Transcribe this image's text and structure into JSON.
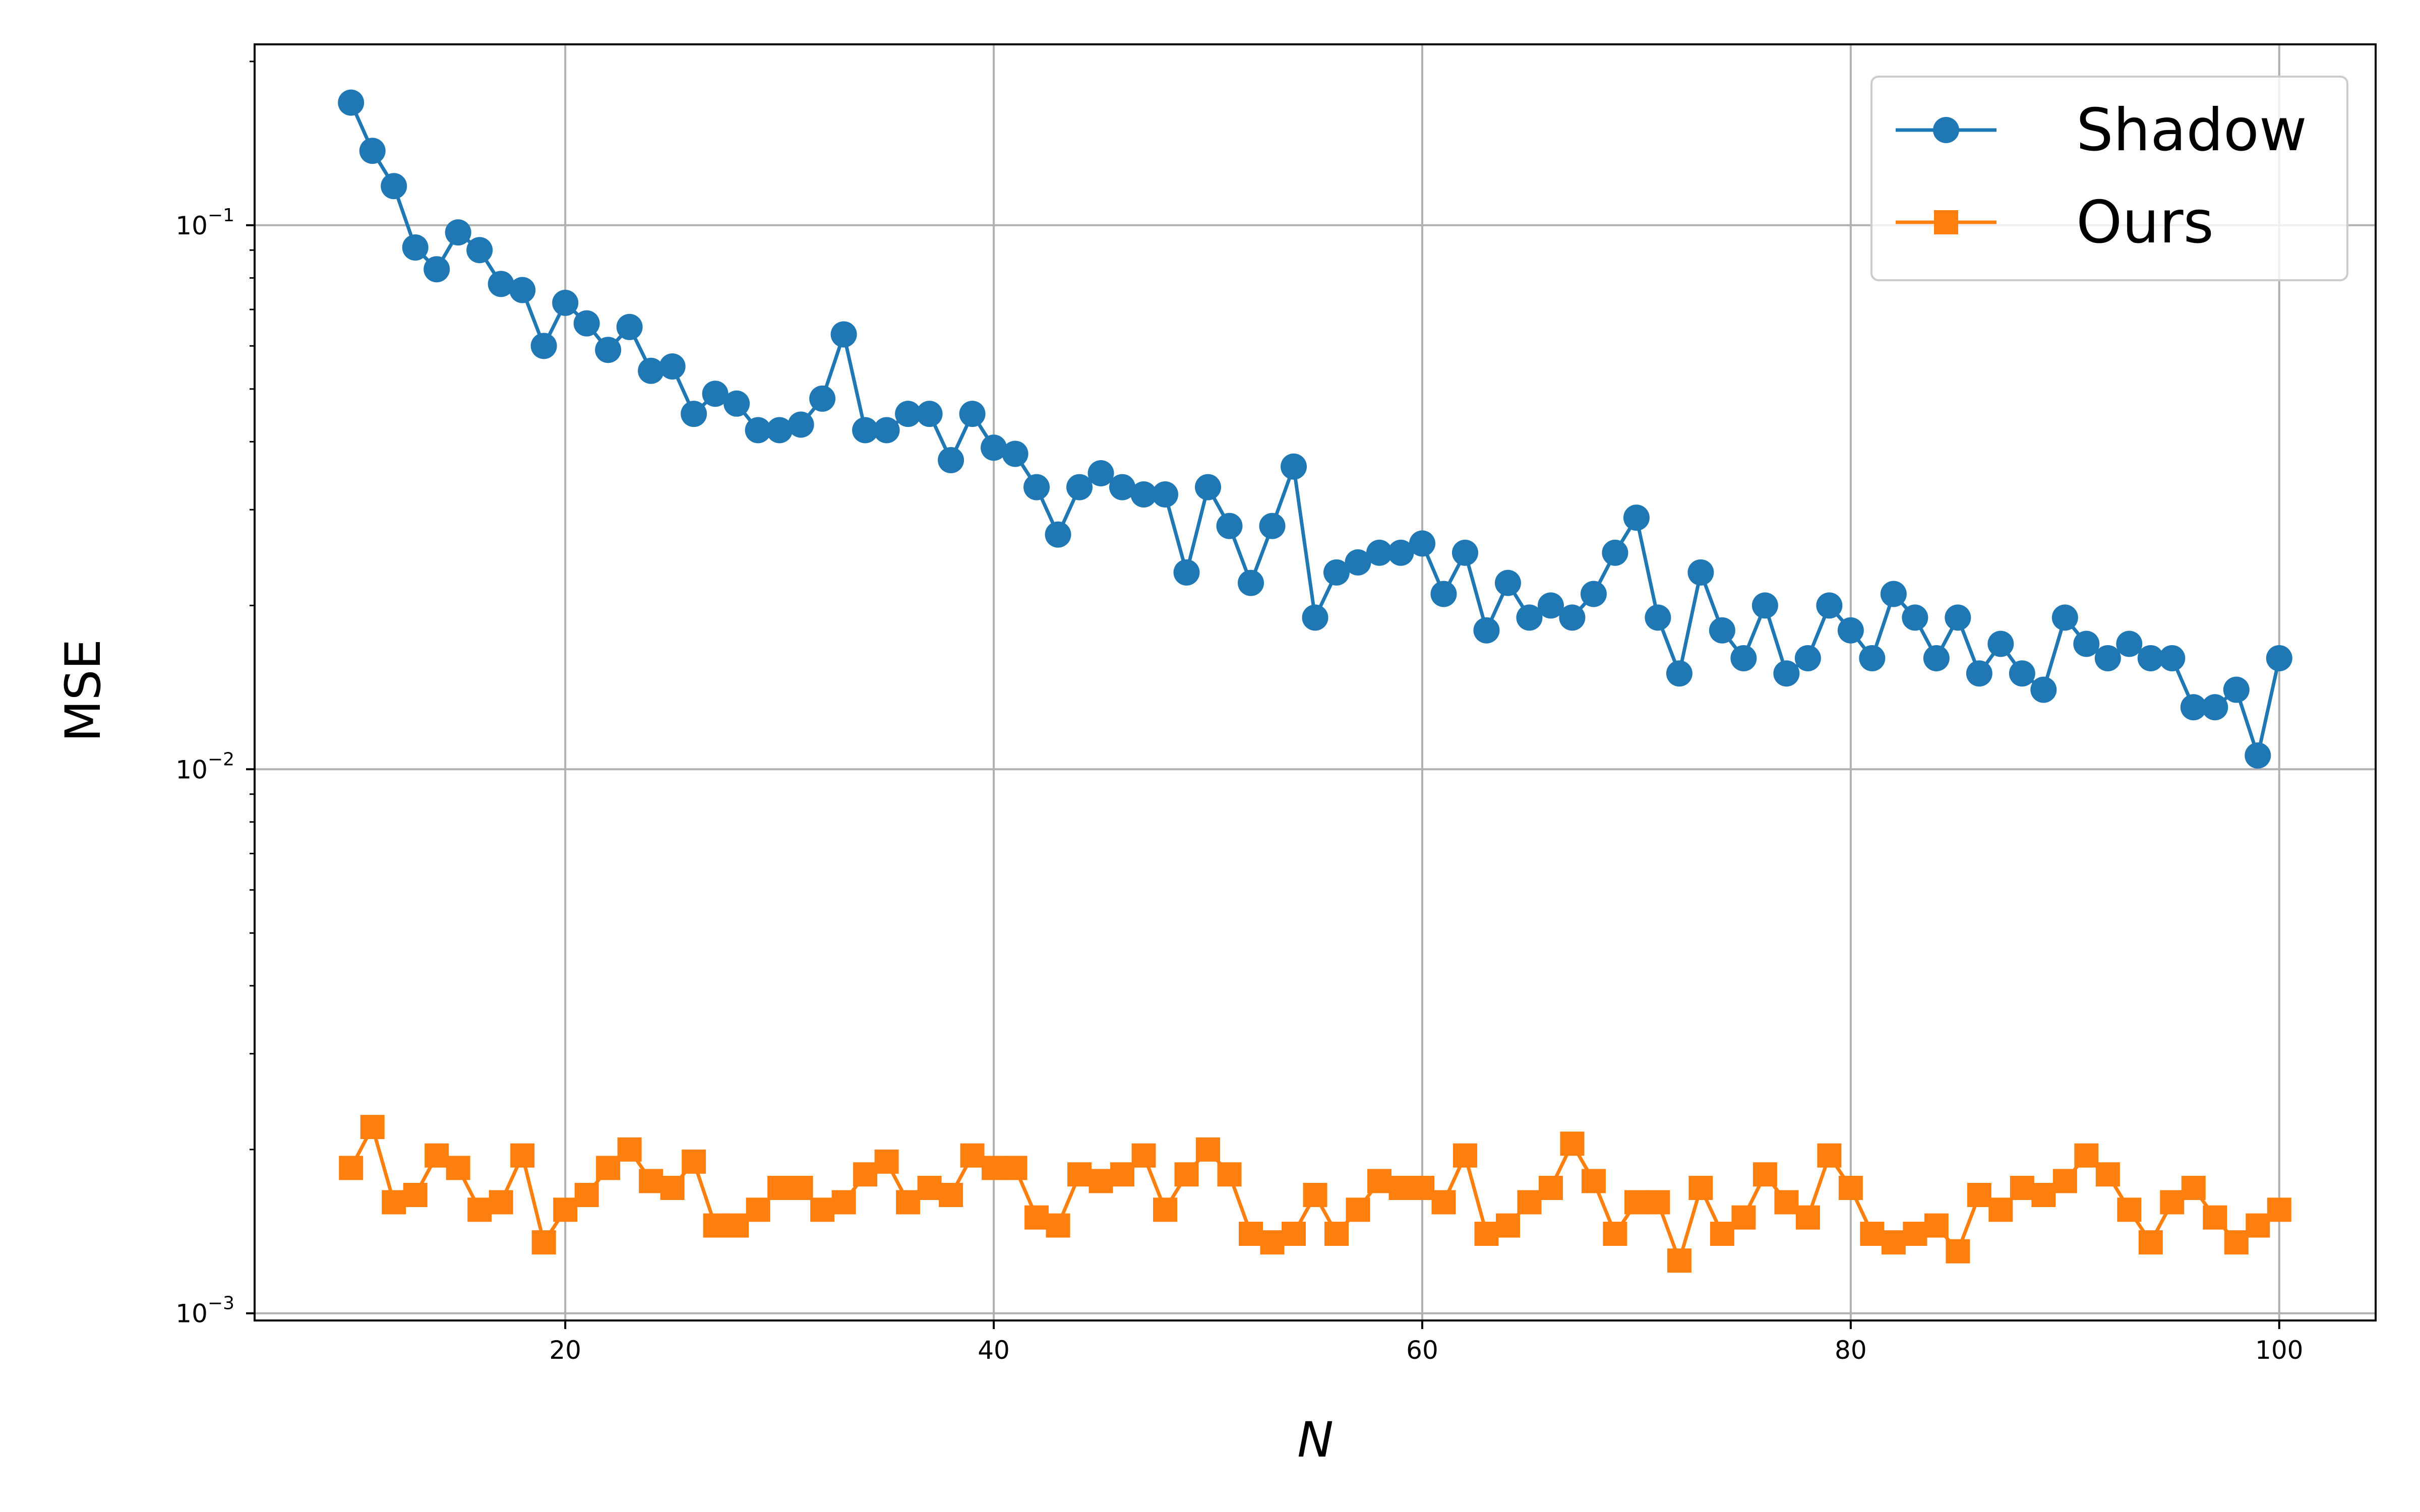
{
  "chart_data": {
    "type": "line",
    "title": "",
    "xlabel": "N",
    "ylabel": "MSE",
    "xlim": [
      5.5,
      104.5
    ],
    "ylim": [
      0.00097,
      0.215
    ],
    "yscale": "log",
    "grid": true,
    "legend_position": "top-right",
    "x_ticks": [
      20,
      40,
      60,
      80,
      100
    ],
    "x_tick_labels": [
      "20",
      "40",
      "60",
      "80",
      "100"
    ],
    "y_ticks": [
      0.001,
      0.01,
      0.1
    ],
    "y_tick_labels": [
      {
        "base": "10",
        "exp": "−3"
      },
      {
        "base": "10",
        "exp": "−2"
      },
      {
        "base": "10",
        "exp": "−1"
      }
    ],
    "x": [
      10,
      11,
      12,
      13,
      14,
      15,
      16,
      17,
      18,
      19,
      20,
      21,
      22,
      23,
      24,
      25,
      26,
      27,
      28,
      29,
      30,
      31,
      32,
      33,
      34,
      35,
      36,
      37,
      38,
      39,
      40,
      41,
      42,
      43,
      44,
      45,
      46,
      47,
      48,
      49,
      50,
      51,
      52,
      53,
      54,
      55,
      56,
      57,
      58,
      59,
      60,
      61,
      62,
      63,
      64,
      65,
      66,
      67,
      68,
      69,
      70,
      71,
      72,
      73,
      74,
      75,
      76,
      77,
      78,
      79,
      80,
      81,
      82,
      83,
      84,
      85,
      86,
      87,
      88,
      89,
      90,
      91,
      92,
      93,
      94,
      95,
      96,
      97,
      98,
      99,
      100
    ],
    "series": [
      {
        "name": "Shadow",
        "color": "#1f77b4",
        "marker": "circle",
        "values": [
          0.168,
          0.137,
          0.118,
          0.091,
          0.083,
          0.097,
          0.09,
          0.078,
          0.076,
          0.06,
          0.072,
          0.066,
          0.059,
          0.065,
          0.054,
          0.055,
          0.045,
          0.049,
          0.047,
          0.042,
          0.042,
          0.043,
          0.048,
          0.063,
          0.042,
          0.042,
          0.045,
          0.045,
          0.037,
          0.045,
          0.039,
          0.038,
          0.033,
          0.027,
          0.033,
          0.035,
          0.033,
          0.032,
          0.032,
          0.023,
          0.033,
          0.028,
          0.022,
          0.028,
          0.036,
          0.019,
          0.023,
          0.024,
          0.025,
          0.025,
          0.026,
          0.021,
          0.025,
          0.018,
          0.022,
          0.019,
          0.02,
          0.019,
          0.021,
          0.025,
          0.029,
          0.019,
          0.015,
          0.023,
          0.018,
          0.016,
          0.02,
          0.015,
          0.016,
          0.02,
          0.018,
          0.016,
          0.021,
          0.019,
          0.016,
          0.019,
          0.015,
          0.017,
          0.015,
          0.014,
          0.019,
          0.017,
          0.016,
          0.017,
          0.016,
          0.016,
          0.013,
          0.013,
          0.014,
          0.0106,
          0.016
        ]
      },
      {
        "name": "Ours",
        "color": "#ff7f0e",
        "marker": "square",
        "values": [
          0.00185,
          0.0022,
          0.0016,
          0.00165,
          0.00195,
          0.00185,
          0.00155,
          0.0016,
          0.00195,
          0.00135,
          0.00155,
          0.00165,
          0.00185,
          0.002,
          0.00175,
          0.0017,
          0.0019,
          0.00145,
          0.00145,
          0.00155,
          0.0017,
          0.0017,
          0.00155,
          0.0016,
          0.0018,
          0.0019,
          0.0016,
          0.0017,
          0.00165,
          0.00195,
          0.00185,
          0.00185,
          0.0015,
          0.00145,
          0.0018,
          0.00175,
          0.0018,
          0.00195,
          0.00155,
          0.0018,
          0.002,
          0.0018,
          0.0014,
          0.00135,
          0.0014,
          0.00165,
          0.0014,
          0.00155,
          0.00175,
          0.0017,
          0.0017,
          0.0016,
          0.00195,
          0.0014,
          0.00145,
          0.0016,
          0.0017,
          0.00205,
          0.00175,
          0.0014,
          0.0016,
          0.0016,
          0.00125,
          0.0017,
          0.0014,
          0.0015,
          0.0018,
          0.0016,
          0.0015,
          0.00195,
          0.0017,
          0.0014,
          0.00135,
          0.0014,
          0.00145,
          0.0013,
          0.00165,
          0.00155,
          0.0017,
          0.00165,
          0.00175,
          0.00195,
          0.0018,
          0.00155,
          0.00135,
          0.0016,
          0.0017,
          0.0015,
          0.00135,
          0.00145,
          0.00155
        ]
      }
    ]
  }
}
